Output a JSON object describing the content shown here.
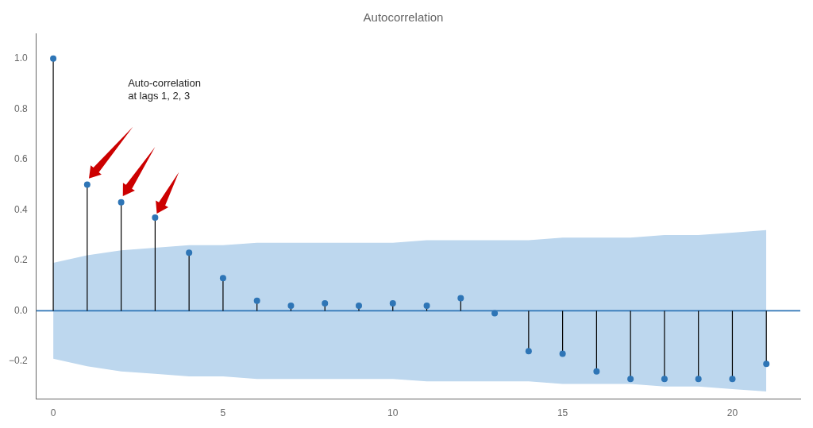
{
  "chart_data": {
    "type": "stem",
    "title": "Autocorrelation",
    "x": [
      0,
      1,
      2,
      3,
      4,
      5,
      6,
      7,
      8,
      9,
      10,
      11,
      12,
      13,
      14,
      15,
      16,
      17,
      18,
      19,
      20,
      21
    ],
    "values": [
      1.0,
      0.5,
      0.43,
      0.37,
      0.23,
      0.13,
      0.04,
      0.02,
      0.03,
      0.02,
      0.03,
      0.02,
      0.05,
      -0.01,
      -0.16,
      -0.17,
      -0.24,
      -0.27,
      -0.27,
      -0.27,
      -0.27,
      -0.21
    ],
    "color": "#2e75b6",
    "marker": "circle",
    "stem_color": "black",
    "confidence_band": {
      "upper": [
        0.19,
        0.22,
        0.24,
        0.25,
        0.26,
        0.26,
        0.27,
        0.27,
        0.27,
        0.27,
        0.27,
        0.28,
        0.28,
        0.28,
        0.28,
        0.29,
        0.29,
        0.29,
        0.3,
        0.3,
        0.31,
        0.32
      ],
      "lower": [
        -0.19,
        -0.22,
        -0.24,
        -0.25,
        -0.26,
        -0.26,
        -0.27,
        -0.27,
        -0.27,
        -0.27,
        -0.27,
        -0.28,
        -0.28,
        -0.28,
        -0.28,
        -0.29,
        -0.29,
        -0.29,
        -0.3,
        -0.3,
        -0.31,
        -0.32
      ],
      "color": "#bdd7ee"
    },
    "zero_line": {
      "y": 0,
      "color": "#2e75b6"
    },
    "annotations": [
      {
        "text": "Auto-correlation\nat lags 1, 2, 3",
        "x": 2.2,
        "y": 0.92
      }
    ],
    "arrows": [
      {
        "from": [
          2.35,
          0.73
        ],
        "to": [
          1.05,
          0.525
        ],
        "color": "#cc0000"
      },
      {
        "from": [
          3.0,
          0.65
        ],
        "to": [
          2.05,
          0.455
        ],
        "color": "#cc0000"
      },
      {
        "from": [
          3.7,
          0.55
        ],
        "to": [
          3.05,
          0.385
        ],
        "color": "#cc0000"
      }
    ],
    "xlim": [
      -0.5,
      22
    ],
    "ylim": [
      -0.35,
      1.1
    ],
    "xticks": [
      0,
      5,
      10,
      15,
      20
    ],
    "yticks": [
      {
        "value": -0.2,
        "label": "−0.2"
      },
      {
        "value": 0.0,
        "label": "0.0"
      },
      0.2,
      0.4,
      0.6,
      0.8,
      {
        "value": 1.0,
        "label": "1.0"
      }
    ],
    "grid": false
  }
}
